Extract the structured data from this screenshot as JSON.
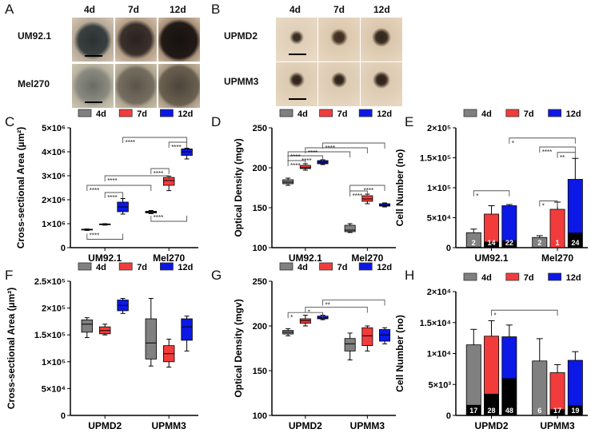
{
  "panels": {
    "A": "A",
    "B": "B",
    "C": "C",
    "D": "D",
    "E": "E",
    "F": "F",
    "G": "G",
    "H": "H"
  },
  "micrographs": {
    "A": {
      "columns": [
        "4d",
        "7d",
        "12d"
      ],
      "rows": [
        "UM92.1",
        "Mel270"
      ]
    },
    "B": {
      "columns": [
        "4d",
        "7d",
        "12d"
      ],
      "rows": [
        "UPMD2",
        "UPMM3"
      ]
    }
  },
  "colors": {
    "4d": "#808080",
    "7d": "#f23c3c",
    "12d": "#0c18e6"
  },
  "chart_data": [
    {
      "panel": "C",
      "type": "box",
      "ylabel": "Cross-sectional Area (µm²)",
      "ylim": [
        0,
        5000000
      ],
      "yticks": [
        0,
        1000000,
        2000000,
        3000000,
        4000000,
        5000000
      ],
      "ytick_labels": [
        "0",
        "1×10⁶",
        "2×10⁶",
        "3×10⁶",
        "4×10⁶",
        "5×10⁶"
      ],
      "legend": [
        "4d",
        "7d",
        "12d"
      ],
      "categories": [
        "UM92.1",
        "Mel270"
      ],
      "series": [
        {
          "name": "4d",
          "values": [
            [
              720000,
              740000,
              750000,
              770000,
              780000
            ],
            [
              1420000,
              1450000,
              1480000,
              1520000,
              1550000
            ]
          ]
        },
        {
          "name": "7d",
          "values": [
            [
              940000,
              960000,
              970000,
              990000,
              1000000
            ],
            [
              2380000,
              2600000,
              2800000,
              2930000,
              2980000
            ]
          ]
        },
        {
          "name": "12d",
          "values": [
            [
              1400000,
              1500000,
              1700000,
              1900000,
              2050000
            ],
            [
              3700000,
              3850000,
              4000000,
              4120000,
              4150000
            ]
          ]
        }
      ],
      "annotations": [
        {
          "from": [
            0,
            0
          ],
          "to": [
            1,
            0
          ],
          "y": 2600000,
          "label": "****"
        },
        {
          "from": [
            0,
            1
          ],
          "to": [
            1,
            1
          ],
          "y": 3000000,
          "label": "****"
        },
        {
          "from": [
            0,
            2
          ],
          "to": [
            1,
            2
          ],
          "y": 4600000,
          "label": "****"
        },
        {
          "from": [
            0,
            1
          ],
          "to": [
            0,
            2
          ],
          "y": 2300000,
          "label": "****"
        },
        {
          "from": [
            1,
            0
          ],
          "to": [
            1,
            1
          ],
          "y": 3300000,
          "label": "****"
        },
        {
          "from": [
            1,
            1
          ],
          "to": [
            1,
            2
          ],
          "y": 4400000,
          "label": "****"
        },
        {
          "from": [
            0,
            0
          ],
          "to": [
            0,
            2
          ],
          "y": 350000,
          "label": "****",
          "below": true
        },
        {
          "from": [
            1,
            0
          ],
          "to": [
            1,
            2
          ],
          "y": 1100000,
          "label": "****",
          "below": true
        }
      ]
    },
    {
      "panel": "D",
      "type": "box",
      "ylabel": "Optical Density (mgv)",
      "ylim": [
        100,
        250
      ],
      "yticks": [
        100,
        150,
        200,
        250
      ],
      "ytick_labels": [
        "100",
        "150",
        "200",
        "250"
      ],
      "legend": [
        "4d",
        "7d",
        "12d"
      ],
      "categories": [
        "UM92.1",
        "Mel270"
      ],
      "series": [
        {
          "name": "4d",
          "values": [
            [
              178,
              180,
              182,
              185,
              187
            ],
            [
              119,
              120,
              122,
              128,
              130
            ]
          ]
        },
        {
          "name": "7d",
          "values": [
            [
              197,
              199,
              200,
              203,
              205
            ],
            [
              155,
              158,
              161,
              165,
              167
            ]
          ]
        },
        {
          "name": "12d",
          "values": [
            [
              204,
              205,
              207,
              209,
              210
            ],
            [
              151,
              152,
              153,
              155,
              156
            ]
          ]
        }
      ],
      "annotations": [
        {
          "from": [
            0,
            0
          ],
          "to": [
            0,
            1
          ],
          "y": 209,
          "label": "****"
        },
        {
          "from": [
            0,
            0
          ],
          "to": [
            0,
            2
          ],
          "y": 215,
          "label": "****"
        },
        {
          "from": [
            0,
            0
          ],
          "to": [
            1,
            0
          ],
          "y": 220,
          "label": "****"
        },
        {
          "from": [
            0,
            1
          ],
          "to": [
            1,
            1
          ],
          "y": 225,
          "label": "****"
        },
        {
          "from": [
            0,
            2
          ],
          "to": [
            1,
            2
          ],
          "y": 231,
          "label": "****"
        },
        {
          "from": [
            1,
            0
          ],
          "to": [
            1,
            1
          ],
          "y": 171,
          "label": "****"
        },
        {
          "from": [
            1,
            0
          ],
          "to": [
            1,
            2
          ],
          "y": 178,
          "label": "****"
        }
      ]
    },
    {
      "panel": "E",
      "type": "bar",
      "ylabel": "Cell Number (no)",
      "ylim": [
        0,
        200000
      ],
      "yticks": [
        0,
        50000,
        100000,
        150000,
        200000
      ],
      "ytick_labels": [
        "0",
        "5×10⁴",
        "1×10⁵",
        "1.5×10⁵",
        "2×10⁵"
      ],
      "legend": [
        "4d",
        "7d",
        "12d"
      ],
      "categories": [
        "UM92.1",
        "Mel270"
      ],
      "series": [
        {
          "name": "4d",
          "values": [
            25000,
            17000
          ],
          "errors": [
            6000,
            3000
          ],
          "black_portion": [
            1500,
            1000
          ],
          "n_labels": [
            "2",
            "2"
          ]
        },
        {
          "name": "7d",
          "values": [
            56000,
            64000
          ],
          "errors": [
            14000,
            12000
          ],
          "black_portion": [
            10000,
            500
          ],
          "n_labels": [
            "14",
            "1"
          ]
        },
        {
          "name": "12d",
          "values": [
            70000,
            114000
          ],
          "errors": [
            2000,
            35000
          ],
          "black_portion": [
            12000,
            25000
          ],
          "n_labels": [
            "22",
            "24"
          ]
        }
      ],
      "annotations": [
        {
          "from": [
            0,
            0
          ],
          "to": [
            0,
            2
          ],
          "y": 95000,
          "label": "*"
        },
        {
          "from": [
            1,
            0
          ],
          "to": [
            1,
            1
          ],
          "y": 78000,
          "label": "*"
        },
        {
          "from": [
            1,
            0
          ],
          "to": [
            1,
            2
          ],
          "y": 168000,
          "label": "****"
        },
        {
          "from": [
            1,
            1
          ],
          "to": [
            1,
            2
          ],
          "y": 159000,
          "label": "**"
        },
        {
          "from": [
            0,
            2
          ],
          "to": [
            1,
            2
          ],
          "y": 183000,
          "label": "*"
        }
      ]
    },
    {
      "panel": "F",
      "type": "box",
      "ylabel": "Cross-sectional Area (µm²)",
      "ylim": [
        0,
        250000
      ],
      "yticks": [
        0,
        50000,
        100000,
        150000,
        200000,
        250000
      ],
      "ytick_labels": [
        "0",
        "5×10⁴",
        "1×10⁵",
        "1.5×10⁵",
        "2×10⁵",
        "2.5×10⁵"
      ],
      "legend": [
        "4d",
        "7d",
        "12d"
      ],
      "categories": [
        "UPMD2",
        "UPMM3"
      ],
      "series": [
        {
          "name": "4d",
          "values": [
            [
              145000,
              155000,
              170000,
              178000,
              182000
            ],
            [
              92000,
              105000,
              135000,
              180000,
              218000
            ]
          ]
        },
        {
          "name": "7d",
          "values": [
            [
              150000,
              152000,
              158000,
              165000,
              170000
            ],
            [
              90000,
              100000,
              115000,
              130000,
              142000
            ]
          ]
        },
        {
          "name": "12d",
          "values": [
            [
              190000,
              195000,
              205000,
              215000,
              218000
            ],
            [
              120000,
              140000,
              165000,
              180000,
              185000
            ]
          ]
        }
      ],
      "annotations": []
    },
    {
      "panel": "G",
      "type": "box",
      "ylabel": "Optical Density (mgv)",
      "ylim": [
        100,
        250
      ],
      "yticks": [
        100,
        150,
        200,
        250
      ],
      "ytick_labels": [
        "100",
        "150",
        "200",
        "250"
      ],
      "legend": [
        "4d",
        "7d",
        "12d"
      ],
      "categories": [
        "UPMD2",
        "UPMM3"
      ],
      "series": [
        {
          "name": "4d",
          "values": [
            [
              189,
              191,
              193,
              195,
              197
            ],
            [
              162,
              172,
              180,
              186,
              192
            ]
          ]
        },
        {
          "name": "7d",
          "values": [
            [
              200,
              203,
              206,
              208,
              212
            ],
            [
              172,
              178,
              189,
              198,
              200
            ]
          ]
        },
        {
          "name": "12d",
          "values": [
            [
              207,
              208,
              209,
              211,
              212
            ],
            [
              180,
              183,
              190,
              196,
              198
            ]
          ]
        }
      ],
      "annotations": [
        {
          "from": [
            0,
            0
          ],
          "to": [
            0,
            2
          ],
          "y": 215,
          "label": "*"
        },
        {
          "from": [
            0,
            1
          ],
          "to": [
            1,
            1
          ],
          "y": 221,
          "label": "*"
        },
        {
          "from": [
            0,
            2
          ],
          "to": [
            1,
            2
          ],
          "y": 229,
          "label": "**"
        }
      ]
    },
    {
      "panel": "H",
      "type": "bar",
      "ylabel": "Cell Number (no)",
      "ylim": [
        0,
        20000
      ],
      "yticks": [
        0,
        5000,
        10000,
        15000,
        20000
      ],
      "ytick_labels": [
        "0",
        "5×10³",
        "1×10⁴",
        "1.5×10⁴",
        "2×10⁴"
      ],
      "legend": [
        "4d",
        "7d",
        "12d"
      ],
      "categories": [
        "UPMD2",
        "UPMM3"
      ],
      "series": [
        {
          "name": "4d",
          "values": [
            11400,
            8800
          ],
          "errors": [
            2500,
            3600
          ],
          "black_portion": [
            1700,
            0
          ],
          "n_labels": [
            "17",
            "6"
          ]
        },
        {
          "name": "7d",
          "values": [
            12800,
            6900
          ],
          "errors": [
            2500,
            1300
          ],
          "black_portion": [
            3500,
            1000
          ],
          "n_labels": [
            "28",
            "17"
          ]
        },
        {
          "name": "12d",
          "values": [
            12700,
            8900
          ],
          "errors": [
            1900,
            1400
          ],
          "black_portion": [
            6000,
            1600
          ],
          "n_labels": [
            "48",
            "19"
          ]
        }
      ],
      "annotations": [
        {
          "from": [
            0,
            1
          ],
          "to": [
            1,
            1
          ],
          "y": 17000,
          "label": "*"
        }
      ]
    }
  ]
}
